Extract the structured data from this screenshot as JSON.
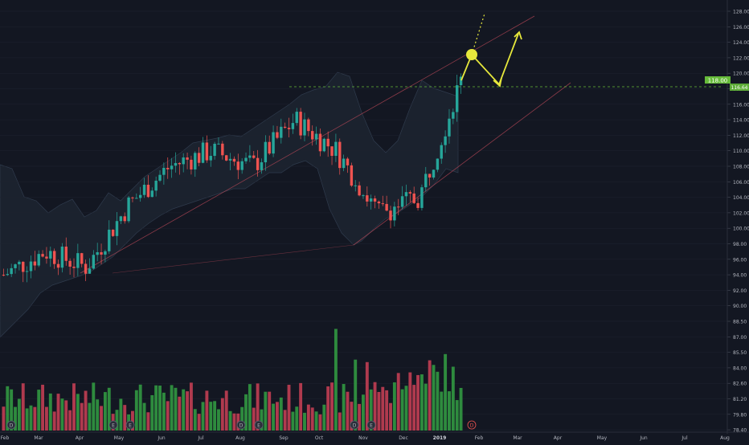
{
  "chart_data": {
    "type": "candlestick",
    "title": "",
    "price_axis": {
      "ticks": [
        "128.00",
        "126.00",
        "124.00",
        "122.00",
        "120.00",
        "118.00",
        "116.00",
        "114.00",
        "112.00",
        "110.00",
        "108.00",
        "106.00",
        "104.00",
        "102.00",
        "100.00",
        "98.00",
        "96.00",
        "94.00",
        "92.00",
        "90.00",
        "88.50",
        "87.00",
        "85.50",
        "84.00",
        "82.60",
        "81.20",
        "79.80",
        "78.40"
      ],
      "current_price_label": "118.00",
      "last_value_label": "116.64"
    },
    "time_axis": {
      "labels": [
        "Feb",
        "Mar",
        "Apr",
        "May",
        "Jun",
        "Jul",
        "Aug",
        "Sep",
        "Oct",
        "Nov",
        "Dec",
        "2019",
        "Feb",
        "Mar",
        "Apr",
        "May",
        "Jun",
        "Jul",
        "Aug"
      ]
    },
    "series": [
      {
        "type": "ohlc",
        "x": [
          "Feb",
          "Mar",
          "Apr",
          "May",
          "Jun",
          "Jul",
          "Aug",
          "Sep",
          "Oct",
          "Nov",
          "Dec",
          "2019"
        ],
        "close": [
          94,
          97,
          95,
          103,
          108,
          110,
          108,
          114,
          110,
          102,
          104,
          119
        ]
      },
      {
        "type": "volume",
        "x": [
          "Feb",
          "Mar",
          "Apr",
          "May",
          "Jun",
          "Jul",
          "Aug",
          "Sep",
          "Oct",
          "Nov",
          "Dec",
          "2019"
        ],
        "values": [
          81.5,
          80.8,
          81.2,
          82.0,
          81.0,
          81.3,
          81.6,
          81.2,
          81.4,
          83.0,
          82.8,
          82.3
        ]
      }
    ],
    "event_markers": [
      "D",
      "E",
      "E",
      "D",
      "E",
      "D",
      "E",
      "D",
      "E"
    ],
    "colors": {
      "background": "#131722",
      "up": "#26a69a",
      "down": "#ef5350",
      "annotation": "#e6e83c",
      "grid": "#1f2430",
      "axis_text": "#b2b5be",
      "label_bg": "#66bb3a"
    }
  }
}
